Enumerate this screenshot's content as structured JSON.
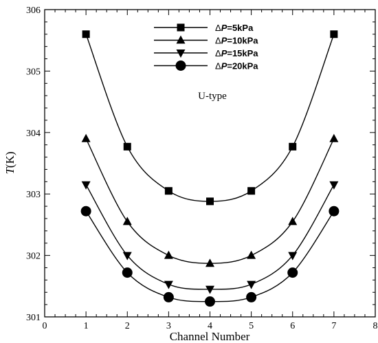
{
  "chart_data": {
    "type": "line",
    "xlabel": "Channel Number",
    "ylabel_symbol": "T",
    "ylabel_unit": "(K)",
    "xlim": [
      0,
      8
    ],
    "ylim": [
      301,
      306
    ],
    "xticks": [
      "0",
      "1",
      "2",
      "3",
      "4",
      "5",
      "6",
      "7",
      "8"
    ],
    "yticks": [
      "301",
      "302",
      "303",
      "304",
      "305",
      "306"
    ],
    "annotation": "U-type",
    "x": [
      1,
      2,
      3,
      4,
      5,
      6,
      7
    ],
    "series": [
      {
        "name": "ΔP=5kPa",
        "delta": "Δ",
        "symbol": "P",
        "value": "=5kPa",
        "marker": "square",
        "values": [
          305.6,
          303.77,
          303.05,
          302.88,
          303.05,
          303.77,
          305.6
        ]
      },
      {
        "name": "ΔP=10kPa",
        "delta": "Δ",
        "symbol": "P",
        "value": "=10kPa",
        "marker": "triangle-up",
        "values": [
          303.9,
          302.55,
          302.0,
          301.87,
          302.0,
          302.55,
          303.9
        ]
      },
      {
        "name": "ΔP=15kPa",
        "delta": "Δ",
        "symbol": "P",
        "value": "=15kPa",
        "marker": "triangle-down",
        "values": [
          303.15,
          302.0,
          301.53,
          301.45,
          301.53,
          302.0,
          303.15
        ]
      },
      {
        "name": "ΔP=20kPa",
        "delta": "Δ",
        "symbol": "P",
        "value": "=20kPa",
        "marker": "circle",
        "values": [
          302.72,
          301.72,
          301.32,
          301.25,
          301.32,
          301.72,
          302.72
        ]
      }
    ],
    "legend_position": "top-center"
  }
}
